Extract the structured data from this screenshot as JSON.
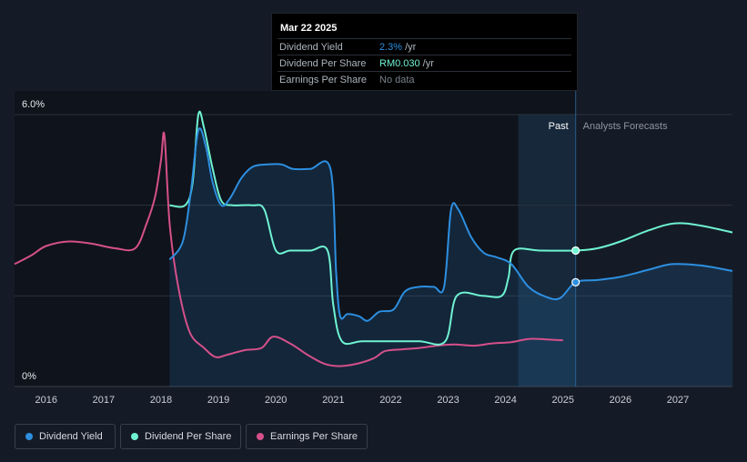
{
  "tooltip": {
    "date": "Mar 22 2025",
    "rows": [
      {
        "label": "Dividend Yield",
        "value": "2.3%",
        "unit": "/yr",
        "color": "#2d8fe0"
      },
      {
        "label": "Dividend Per Share",
        "value": "RM0.030",
        "unit": "/yr",
        "color": "#6ff3d2"
      },
      {
        "label": "Earnings Per Share",
        "value": "No data",
        "unit": "",
        "color": "#7a808a"
      }
    ]
  },
  "regions": {
    "past_label": "Past",
    "forecast_label": "Analysts Forecasts"
  },
  "legend": [
    {
      "label": "Dividend Yield",
      "color": "#2d8fe0"
    },
    {
      "label": "Dividend Per Share",
      "color": "#6ff3d2"
    },
    {
      "label": "Earnings Per Share",
      "color": "#d5508a"
    }
  ],
  "chart_data": {
    "type": "line",
    "y_tick_labels": [
      "6.0%",
      "0%"
    ],
    "ylim": [
      0,
      6
    ],
    "xlim": [
      2015.45,
      2027.95
    ],
    "x_tick_labels": [
      "2016",
      "2017",
      "2018",
      "2019",
      "2020",
      "2021",
      "2022",
      "2023",
      "2024",
      "2025",
      "2026",
      "2027"
    ],
    "grid": true,
    "past_boundary": 2025.22,
    "forecast_shade_start": 2024.22,
    "series": [
      {
        "name": "Dividend Yield",
        "color": "#2d8fe0",
        "points": [
          [
            2018.15,
            2.8
          ],
          [
            2018.38,
            3.2
          ],
          [
            2018.52,
            4.3
          ],
          [
            2018.65,
            5.65
          ],
          [
            2018.78,
            5.3
          ],
          [
            2018.9,
            4.5
          ],
          [
            2019.05,
            4.0
          ],
          [
            2019.2,
            4.15
          ],
          [
            2019.4,
            4.6
          ],
          [
            2019.6,
            4.85
          ],
          [
            2019.85,
            4.9
          ],
          [
            2020.1,
            4.9
          ],
          [
            2020.3,
            4.8
          ],
          [
            2020.6,
            4.8
          ],
          [
            2020.95,
            4.8
          ],
          [
            2021.05,
            2.5
          ],
          [
            2021.12,
            1.55
          ],
          [
            2021.25,
            1.6
          ],
          [
            2021.45,
            1.55
          ],
          [
            2021.6,
            1.45
          ],
          [
            2021.8,
            1.65
          ],
          [
            2022.05,
            1.7
          ],
          [
            2022.25,
            2.1
          ],
          [
            2022.5,
            2.2
          ],
          [
            2022.75,
            2.2
          ],
          [
            2022.93,
            2.2
          ],
          [
            2023.05,
            3.9
          ],
          [
            2023.18,
            3.9
          ],
          [
            2023.4,
            3.3
          ],
          [
            2023.62,
            2.95
          ],
          [
            2023.85,
            2.85
          ],
          [
            2024.1,
            2.7
          ],
          [
            2024.4,
            2.2
          ],
          [
            2024.7,
            1.98
          ],
          [
            2024.95,
            1.95
          ],
          [
            2025.22,
            2.3
          ],
          [
            2025.6,
            2.35
          ],
          [
            2026.0,
            2.42
          ],
          [
            2026.5,
            2.58
          ],
          [
            2026.9,
            2.7
          ],
          [
            2027.4,
            2.67
          ],
          [
            2027.95,
            2.55
          ]
        ]
      },
      {
        "name": "Dividend Per Share",
        "color": "#6ff3d2",
        "points": [
          [
            2018.15,
            4.0
          ],
          [
            2018.42,
            4.0
          ],
          [
            2018.55,
            4.5
          ],
          [
            2018.65,
            6.0
          ],
          [
            2018.75,
            5.7
          ],
          [
            2018.9,
            4.8
          ],
          [
            2019.05,
            4.1
          ],
          [
            2019.25,
            4.0
          ],
          [
            2019.6,
            4.0
          ],
          [
            2019.8,
            3.9
          ],
          [
            2020.0,
            3.0
          ],
          [
            2020.25,
            3.0
          ],
          [
            2020.6,
            3.0
          ],
          [
            2020.9,
            3.0
          ],
          [
            2021.0,
            1.8
          ],
          [
            2021.15,
            1.0
          ],
          [
            2021.5,
            1.0
          ],
          [
            2022.0,
            1.0
          ],
          [
            2022.5,
            1.0
          ],
          [
            2022.95,
            1.0
          ],
          [
            2023.15,
            2.0
          ],
          [
            2023.6,
            2.0
          ],
          [
            2023.93,
            2.0
          ],
          [
            2024.05,
            2.4
          ],
          [
            2024.15,
            3.0
          ],
          [
            2024.6,
            3.0
          ],
          [
            2025.22,
            3.0
          ],
          [
            2025.6,
            3.05
          ],
          [
            2026.0,
            3.2
          ],
          [
            2026.5,
            3.45
          ],
          [
            2026.95,
            3.6
          ],
          [
            2027.4,
            3.55
          ],
          [
            2027.95,
            3.4
          ]
        ]
      },
      {
        "name": "Earnings Per Share",
        "color": "#d5508a",
        "points": [
          [
            2015.45,
            2.7
          ],
          [
            2015.75,
            2.9
          ],
          [
            2016.0,
            3.1
          ],
          [
            2016.4,
            3.2
          ],
          [
            2016.8,
            3.15
          ],
          [
            2017.2,
            3.05
          ],
          [
            2017.55,
            3.05
          ],
          [
            2017.75,
            3.6
          ],
          [
            2017.9,
            4.2
          ],
          [
            2018.0,
            5.0
          ],
          [
            2018.06,
            5.55
          ],
          [
            2018.15,
            3.6
          ],
          [
            2018.3,
            2.2
          ],
          [
            2018.5,
            1.2
          ],
          [
            2018.75,
            0.85
          ],
          [
            2018.95,
            0.65
          ],
          [
            2019.15,
            0.7
          ],
          [
            2019.45,
            0.8
          ],
          [
            2019.75,
            0.85
          ],
          [
            2019.95,
            1.1
          ],
          [
            2020.25,
            0.95
          ],
          [
            2020.55,
            0.7
          ],
          [
            2020.85,
            0.5
          ],
          [
            2021.1,
            0.45
          ],
          [
            2021.4,
            0.5
          ],
          [
            2021.7,
            0.62
          ],
          [
            2021.9,
            0.78
          ],
          [
            2022.2,
            0.82
          ],
          [
            2022.5,
            0.85
          ],
          [
            2022.8,
            0.9
          ],
          [
            2023.1,
            0.93
          ],
          [
            2023.45,
            0.9
          ],
          [
            2023.75,
            0.95
          ],
          [
            2024.1,
            0.98
          ],
          [
            2024.4,
            1.05
          ],
          [
            2024.7,
            1.04
          ],
          [
            2025.0,
            1.02
          ]
        ]
      }
    ]
  }
}
